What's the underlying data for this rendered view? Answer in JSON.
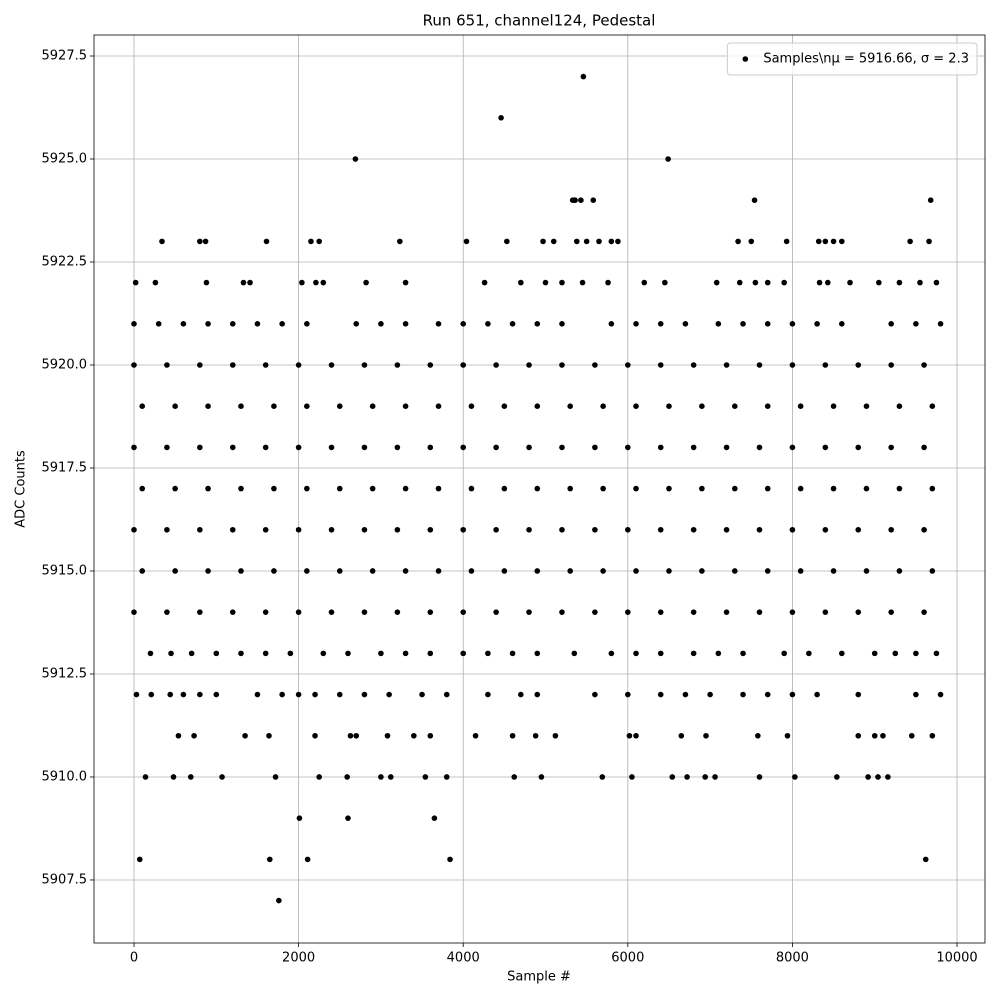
{
  "chart_data": {
    "type": "scatter",
    "title": "Run 651, channel124, Pedestal",
    "xlabel": "Sample #",
    "ylabel": "ADC Counts",
    "xlim": [
      -486,
      10340
    ],
    "ylim": [
      5905.97,
      5928.01
    ],
    "xticks": [
      0,
      2000,
      4000,
      6000,
      8000,
      10000
    ],
    "yticks": [
      5907.5,
      {
        "value": 5910,
        "label": "5910.0"
      },
      5912.5,
      {
        "value": 5915,
        "label": "5915.0"
      },
      5917.5,
      {
        "value": 5920,
        "label": "5920.0"
      },
      5922.5,
      {
        "value": 5925,
        "label": "5925.0"
      },
      5927.5
    ],
    "grid": true,
    "legend": "upper right",
    "x": [
      70,
      1650,
      1760,
      2010,
      2110,
      2600,
      2690,
      3650,
      3840,
      4460,
      5460,
      6490,
      7540,
      9620,
      9680,
      5330,
      5350,
      5430,
      5580,
      5360,
      340,
      800,
      870,
      1610,
      2150,
      2250,
      3230,
      4040,
      4530,
      4970,
      5100,
      5380,
      5500,
      5650,
      5800,
      5880,
      7340,
      7500,
      7930,
      8320,
      8400,
      8500,
      8600,
      9430,
      9660,
      140,
      480,
      690,
      1070,
      1720,
      2250,
      2590,
      3000,
      3120,
      3540,
      3800,
      4620,
      4950,
      5690,
      6050,
      6540,
      6720,
      6940,
      7060,
      7600,
      8030,
      8540,
      8920,
      9040,
      9160,
      540,
      730,
      1350,
      1640,
      2200,
      2630,
      2700,
      3080,
      3400,
      3600,
      4150,
      4600,
      4880,
      5120,
      6020,
      6100,
      6650,
      6950,
      7580,
      7940,
      8800,
      9000,
      9450,
      9700,
      9100,
      20,
      260,
      880,
      1330,
      1410,
      2040,
      2210,
      2300,
      2820,
      3300,
      4260,
      4700,
      5000,
      5200,
      5450,
      5760,
      6200,
      6450,
      7080,
      7360,
      7550,
      7700,
      7900,
      8330,
      8430,
      8700,
      9050,
      9300,
      9550,
      9750,
      30,
      210,
      440,
      600,
      800,
      1000,
      1500,
      1800,
      2000,
      2200,
      2500,
      2800,
      3100,
      3500,
      3800,
      4300,
      4700,
      4900,
      5600,
      6000,
      6400,
      6700,
      7000,
      7400,
      7700,
      8000,
      8300,
      8800,
      9500,
      9800,
      200,
      450,
      700,
      1000,
      1300,
      1600,
      1900,
      2300,
      2600,
      3000,
      3300,
      3600,
      4000,
      4300,
      4600,
      4900,
      5350,
      5800,
      6100,
      6400,
      6800,
      7100,
      7400,
      7900,
      8200,
      8600,
      9000,
      9500,
      9750,
      9250,
      0,
      300,
      600,
      900,
      1200,
      1500,
      1800,
      2100,
      2700,
      3000,
      3300,
      3700,
      4000,
      4300,
      4600,
      4900,
      5200,
      5800,
      6100,
      6400,
      6700,
      7100,
      7400,
      7700,
      8000,
      8300,
      8600,
      9200,
      9500,
      9800,
      0,
      400,
      800,
      1200,
      1600,
      2000,
      2400,
      2800,
      3200,
      3600,
      4000,
      4400,
      4800,
      5200,
      5600,
      6000,
      6400,
      6800,
      7200,
      7600,
      8000,
      8400,
      8800,
      9200,
      9600,
      100,
      500,
      900,
      1300,
      1700,
      2100,
      2500,
      2900,
      3300,
      3700,
      4100,
      4500,
      4900,
      5300,
      5700,
      6100,
      6500,
      6900,
      7300,
      7700,
      8100,
      8500,
      8900,
      9300,
      9700,
      0,
      400,
      800,
      1200,
      1600,
      2000,
      2400,
      2800,
      3200,
      3600,
      4000,
      4400,
      4800,
      5200,
      5600,
      6000,
      6400,
      6800,
      7200,
      7600,
      8000,
      8400,
      8800,
      9200,
      9600,
      100,
      500,
      900,
      1300,
      1700,
      2100,
      2500,
      2900,
      3300,
      3700,
      4100,
      4500,
      4900,
      5300,
      5700,
      6100,
      6500,
      6900,
      7300,
      7700,
      8100,
      8500,
      8900,
      9300,
      9700,
      0,
      400,
      800,
      1200,
      1600,
      2000,
      2400,
      2800,
      3200,
      3600,
      4000,
      4400,
      4800,
      5200,
      5600,
      6000,
      6400,
      6800,
      7200,
      7600,
      8000,
      8400,
      8800,
      9200,
      9600,
      100,
      500,
      900,
      1300,
      1700,
      2100,
      2500,
      2900,
      3300,
      3700,
      4100,
      4500,
      4900,
      5300,
      5700,
      6100,
      6500,
      6900,
      7300,
      7700,
      8100,
      8500,
      8900,
      9300,
      9700,
      0,
      400,
      800,
      1200,
      1600,
      2000,
      2400,
      2800,
      3200,
      3600,
      4000,
      4400,
      4800,
      5200,
      5600,
      6000,
      6400,
      6800,
      7200,
      7600,
      8000,
      8400,
      8800,
      9200,
      9600
    ],
    "series": [
      {
        "name": "Samples\\nμ = 5916.66, σ = 2.3",
        "color": "#000000",
        "values": [
          5908,
          5908,
          5907,
          5909,
          5908,
          5909,
          5925,
          5909,
          5908,
          5926,
          5927,
          5925,
          5924,
          5908,
          5924,
          5924,
          5924,
          5924,
          5924,
          5924,
          5923,
          5923,
          5923,
          5923,
          5923,
          5923,
          5923,
          5923,
          5923,
          5923,
          5923,
          5923,
          5923,
          5923,
          5923,
          5923,
          5923,
          5923,
          5923,
          5923,
          5923,
          5923,
          5923,
          5923,
          5923,
          5910,
          5910,
          5910,
          5910,
          5910,
          5910,
          5910,
          5910,
          5910,
          5910,
          5910,
          5910,
          5910,
          5910,
          5910,
          5910,
          5910,
          5910,
          5910,
          5910,
          5910,
          5910,
          5910,
          5910,
          5910,
          5911,
          5911,
          5911,
          5911,
          5911,
          5911,
          5911,
          5911,
          5911,
          5911,
          5911,
          5911,
          5911,
          5911,
          5911,
          5911,
          5911,
          5911,
          5911,
          5911,
          5911,
          5911,
          5911,
          5911,
          5911,
          5922,
          5922,
          5922,
          5922,
          5922,
          5922,
          5922,
          5922,
          5922,
          5922,
          5922,
          5922,
          5922,
          5922,
          5922,
          5922,
          5922,
          5922,
          5922,
          5922,
          5922,
          5922,
          5922,
          5922,
          5922,
          5922,
          5922,
          5922,
          5922,
          5922,
          5912,
          5912,
          5912,
          5912,
          5912,
          5912,
          5912,
          5912,
          5912,
          5912,
          5912,
          5912,
          5912,
          5912,
          5912,
          5912,
          5912,
          5912,
          5912,
          5912,
          5912,
          5912,
          5912,
          5912,
          5912,
          5912,
          5912,
          5912,
          5912,
          5912,
          5913,
          5913,
          5913,
          5913,
          5913,
          5913,
          5913,
          5913,
          5913,
          5913,
          5913,
          5913,
          5913,
          5913,
          5913,
          5913,
          5913,
          5913,
          5913,
          5913,
          5913,
          5913,
          5913,
          5913,
          5913,
          5913,
          5913,
          5913,
          5913,
          5913,
          5921,
          5921,
          5921,
          5921,
          5921,
          5921,
          5921,
          5921,
          5921,
          5921,
          5921,
          5921,
          5921,
          5921,
          5921,
          5921,
          5921,
          5921,
          5921,
          5921,
          5921,
          5921,
          5921,
          5921,
          5921,
          5921,
          5921,
          5921,
          5921,
          5921,
          5914,
          5914,
          5914,
          5914,
          5914,
          5914,
          5914,
          5914,
          5914,
          5914,
          5914,
          5914,
          5914,
          5914,
          5914,
          5914,
          5914,
          5914,
          5914,
          5914,
          5914,
          5914,
          5914,
          5914,
          5914,
          5915,
          5915,
          5915,
          5915,
          5915,
          5915,
          5915,
          5915,
          5915,
          5915,
          5915,
          5915,
          5915,
          5915,
          5915,
          5915,
          5915,
          5915,
          5915,
          5915,
          5915,
          5915,
          5915,
          5915,
          5915,
          5916,
          5916,
          5916,
          5916,
          5916,
          5916,
          5916,
          5916,
          5916,
          5916,
          5916,
          5916,
          5916,
          5916,
          5916,
          5916,
          5916,
          5916,
          5916,
          5916,
          5916,
          5916,
          5916,
          5916,
          5916,
          5917,
          5917,
          5917,
          5917,
          5917,
          5917,
          5917,
          5917,
          5917,
          5917,
          5917,
          5917,
          5917,
          5917,
          5917,
          5917,
          5917,
          5917,
          5917,
          5917,
          5917,
          5917,
          5917,
          5917,
          5917,
          5918,
          5918,
          5918,
          5918,
          5918,
          5918,
          5918,
          5918,
          5918,
          5918,
          5918,
          5918,
          5918,
          5918,
          5918,
          5918,
          5918,
          5918,
          5918,
          5918,
          5918,
          5918,
          5918,
          5918,
          5918,
          5919,
          5919,
          5919,
          5919,
          5919,
          5919,
          5919,
          5919,
          5919,
          5919,
          5919,
          5919,
          5919,
          5919,
          5919,
          5919,
          5919,
          5919,
          5919,
          5919,
          5919,
          5919,
          5919,
          5919,
          5919,
          5920,
          5920,
          5920,
          5920,
          5920,
          5920,
          5920,
          5920,
          5920,
          5920,
          5920,
          5920,
          5920,
          5920,
          5920,
          5920,
          5920,
          5920,
          5920,
          5920,
          5920,
          5920,
          5920,
          5920,
          5920
        ]
      }
    ]
  }
}
